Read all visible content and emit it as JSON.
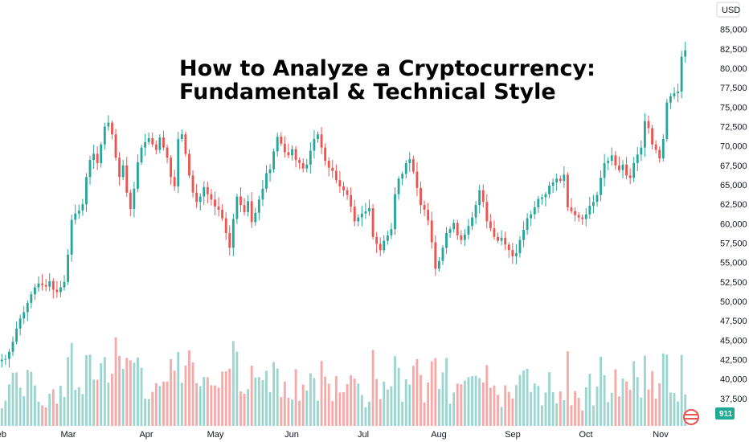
{
  "colors": {
    "up": "#26a69a",
    "down": "#ef5350",
    "up_volume": "#9bd5cf",
    "down_volume": "#f7a9a7",
    "axis_text": "#131722",
    "background": "#ffffff",
    "badge_bg": "#22ab94"
  },
  "title": {
    "line1": "How to Analyze a Cryptocurrency:",
    "line2": "Fundamental & Technical Style"
  },
  "price_axis": {
    "currency": "USD",
    "current_badge": "911",
    "ticks": [
      "85,000",
      "82,500",
      "80,000",
      "77,500",
      "75,000",
      "72,500",
      "70,000",
      "67,500",
      "65,000",
      "62,500",
      "60,000",
      "57,500",
      "55,000",
      "52,500",
      "50,000",
      "47,500",
      "45,000",
      "42,500",
      "40,000",
      "37,500"
    ]
  },
  "time_axis": {
    "labels": [
      "Feb",
      "Mar",
      "Apr",
      "May",
      "Jun",
      "Jul",
      "Aug",
      "Sep",
      "Oct",
      "Nov"
    ]
  },
  "icons": {
    "logo": "tradingview-logo-icon"
  },
  "chart_data": {
    "type": "candlestick",
    "ylim": [
      35000,
      86000
    ],
    "y_unit": "USD",
    "x_months": [
      "Feb",
      "Mar",
      "Apr",
      "May",
      "Jun",
      "Jul",
      "Aug",
      "Sep",
      "Oct",
      "Nov"
    ],
    "grid": false,
    "legend": "none",
    "daily_closes_approx": [
      42500,
      42600,
      43500,
      44800,
      46500,
      47800,
      48600,
      49800,
      50900,
      51800,
      52300,
      52100,
      51900,
      52600,
      51500,
      51200,
      51800,
      52500,
      56000,
      60500,
      61300,
      61700,
      62500,
      66000,
      68200,
      69000,
      67800,
      70200,
      72500,
      73000,
      71500,
      68500,
      66000,
      67500,
      64000,
      61900,
      64500,
      67900,
      69800,
      70500,
      71000,
      70200,
      69500,
      71100,
      69800,
      68500,
      66000,
      64800,
      70900,
      71500,
      69000,
      66200,
      64000,
      62800,
      63500,
      64700,
      63800,
      63100,
      62200,
      61800,
      60700,
      58800,
      56900,
      60600,
      63500,
      62400,
      61500,
      62900,
      60200,
      61400,
      63100,
      64500,
      66500,
      67000,
      69300,
      71200,
      70300,
      69200,
      68800,
      69600,
      68200,
      67800,
      67100,
      67600,
      69400,
      70900,
      71500,
      69800,
      68100,
      67200,
      66800,
      65600,
      64800,
      64300,
      63700,
      62200,
      60300,
      60800,
      61300,
      61600,
      62000,
      58300,
      57400,
      56600,
      57800,
      58500,
      59300,
      63800,
      65800,
      66400,
      67800,
      68300,
      66700,
      64600,
      62400,
      61800,
      60400,
      57600,
      54200,
      55200,
      56900,
      58800,
      59300,
      60100,
      58500,
      57900,
      58600,
      59700,
      60800,
      62400,
      64300,
      62800,
      60300,
      59400,
      58300,
      57800,
      58200,
      57300,
      56600,
      55800,
      56200,
      57900,
      59200,
      60700,
      61200,
      62100,
      63200,
      63400,
      63800,
      64900,
      65300,
      65800,
      65500,
      66300,
      62100,
      61600,
      61100,
      60800,
      60600,
      61200,
      62300,
      62800,
      63700,
      65900,
      67800,
      68100,
      68800,
      67500,
      66900,
      67600,
      66200,
      65900,
      67800,
      68900,
      69800,
      73200,
      72300,
      70200,
      69500,
      68400,
      70900,
      75600,
      76400,
      76800,
      77000,
      81500,
      82300
    ]
  }
}
